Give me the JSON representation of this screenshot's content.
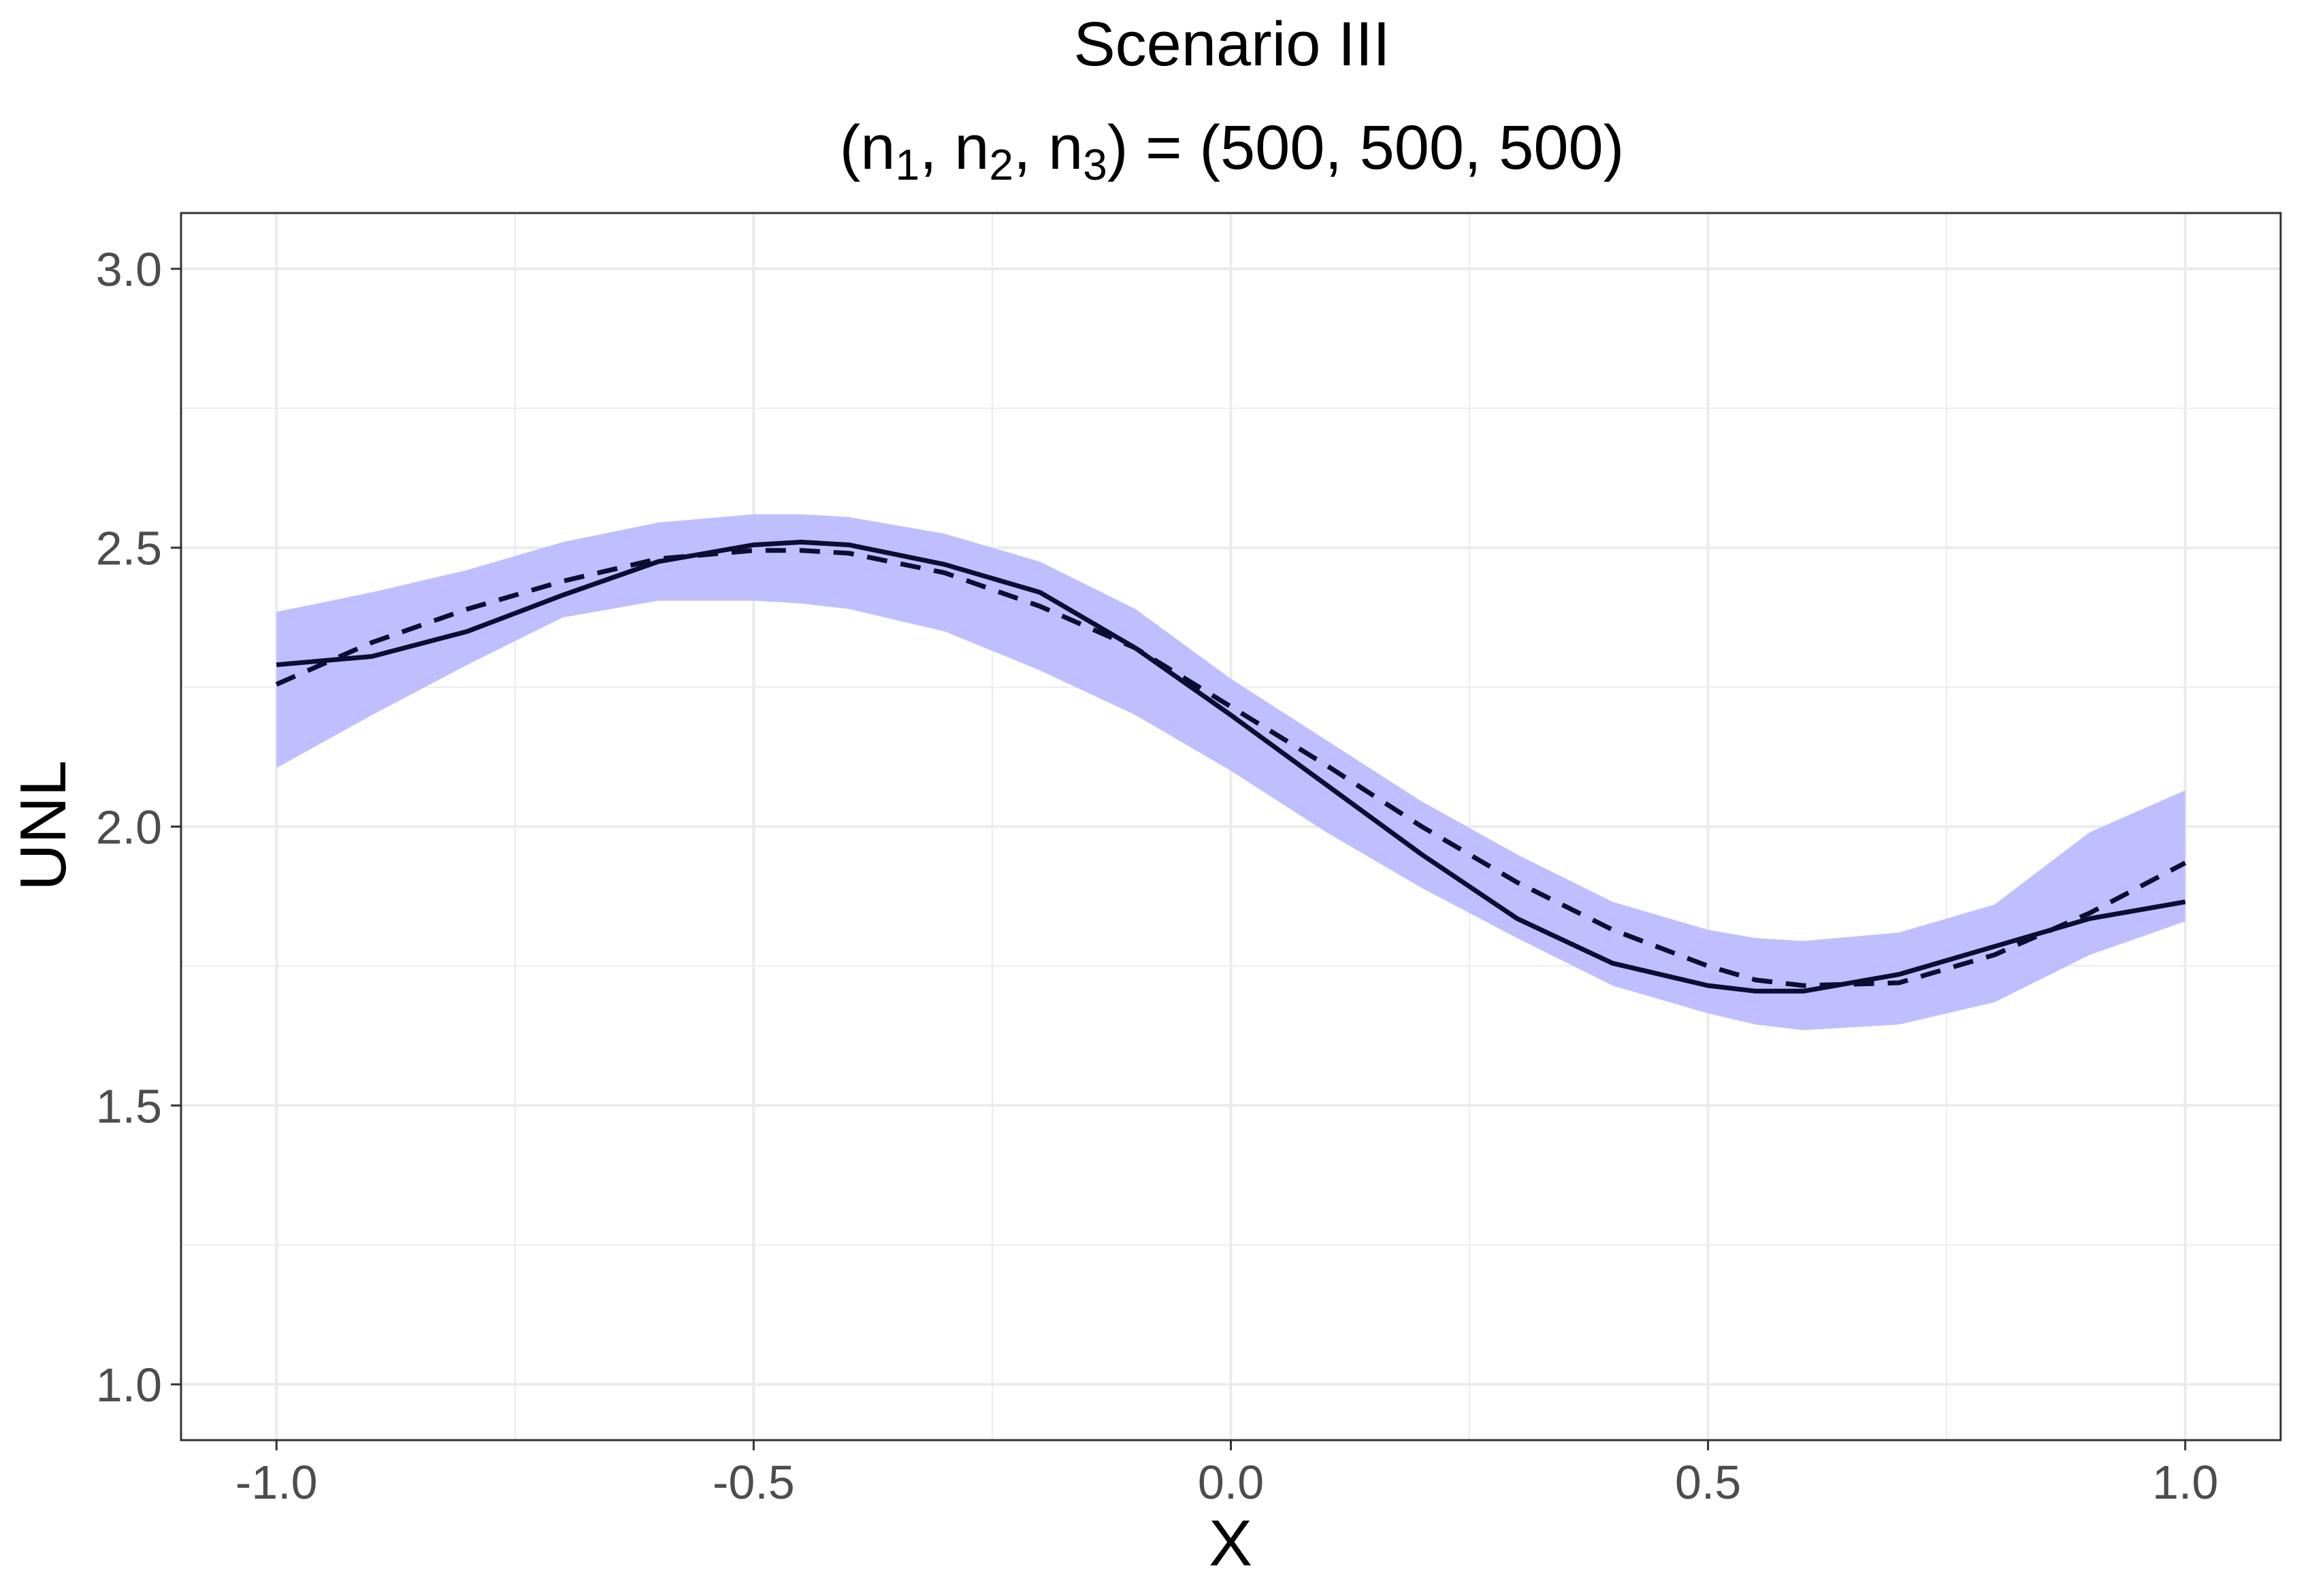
{
  "chart_data": {
    "type": "line",
    "title": "Scenario III",
    "subtitle": {
      "open": "(",
      "n1_base": "n",
      "n1_sub": "1",
      "sep1": ", ",
      "n2_base": "n",
      "n2_sub": "2",
      "sep2": ", ",
      "n3_base": "n",
      "n3_sub": "3",
      "rest": ") = (500, 500, 500)"
    },
    "xlabel": "X",
    "ylabel": "UNL",
    "xlim": [
      -1.1,
      1.1
    ],
    "ylim": [
      0.9,
      3.1
    ],
    "x_ticks": [
      -1.0,
      -0.5,
      0.0,
      0.5,
      1.0
    ],
    "x_tick_labels": [
      "-1.0",
      "-0.5",
      "0.0",
      "0.5",
      "1.0"
    ],
    "y_ticks": [
      1.0,
      1.5,
      2.0,
      2.5,
      3.0
    ],
    "y_tick_labels": [
      "1.0",
      "1.5",
      "2.0",
      "2.5",
      "3.0"
    ],
    "grid": true,
    "legend": "none",
    "colors": {
      "band": "#bfbfff",
      "line": "#0d0d33",
      "grid": "#ebebeb",
      "axis_text": "#4d4d4d"
    },
    "x": [
      -1.0,
      -0.9,
      -0.8,
      -0.7,
      -0.6,
      -0.5,
      -0.45,
      -0.4,
      -0.3,
      -0.2,
      -0.1,
      0.0,
      0.1,
      0.2,
      0.3,
      0.4,
      0.5,
      0.55,
      0.6,
      0.7,
      0.8,
      0.9,
      1.0
    ],
    "series": [
      {
        "style": "solid",
        "values": [
          2.29,
          2.305,
          2.35,
          2.415,
          2.475,
          2.505,
          2.51,
          2.505,
          2.47,
          2.42,
          2.32,
          2.2,
          2.075,
          1.95,
          1.835,
          1.755,
          1.715,
          1.705,
          1.705,
          1.735,
          1.785,
          1.835,
          1.865
        ]
      },
      {
        "style": "dashed",
        "values": [
          2.255,
          2.33,
          2.39,
          2.44,
          2.48,
          2.495,
          2.495,
          2.49,
          2.455,
          2.395,
          2.32,
          2.215,
          2.11,
          2.0,
          1.9,
          1.815,
          1.75,
          1.725,
          1.715,
          1.72,
          1.77,
          1.845,
          1.935
        ]
      }
    ],
    "band": {
      "lower": [
        2.105,
        2.2,
        2.29,
        2.375,
        2.405,
        2.405,
        2.4,
        2.39,
        2.35,
        2.28,
        2.2,
        2.1,
        1.99,
        1.89,
        1.8,
        1.715,
        1.665,
        1.645,
        1.635,
        1.645,
        1.685,
        1.77,
        1.83
      ],
      "upper": [
        2.385,
        2.42,
        2.46,
        2.51,
        2.545,
        2.56,
        2.56,
        2.555,
        2.525,
        2.475,
        2.39,
        2.265,
        2.155,
        2.045,
        1.95,
        1.865,
        1.815,
        1.8,
        1.795,
        1.81,
        1.86,
        1.99,
        2.065
      ]
    }
  }
}
